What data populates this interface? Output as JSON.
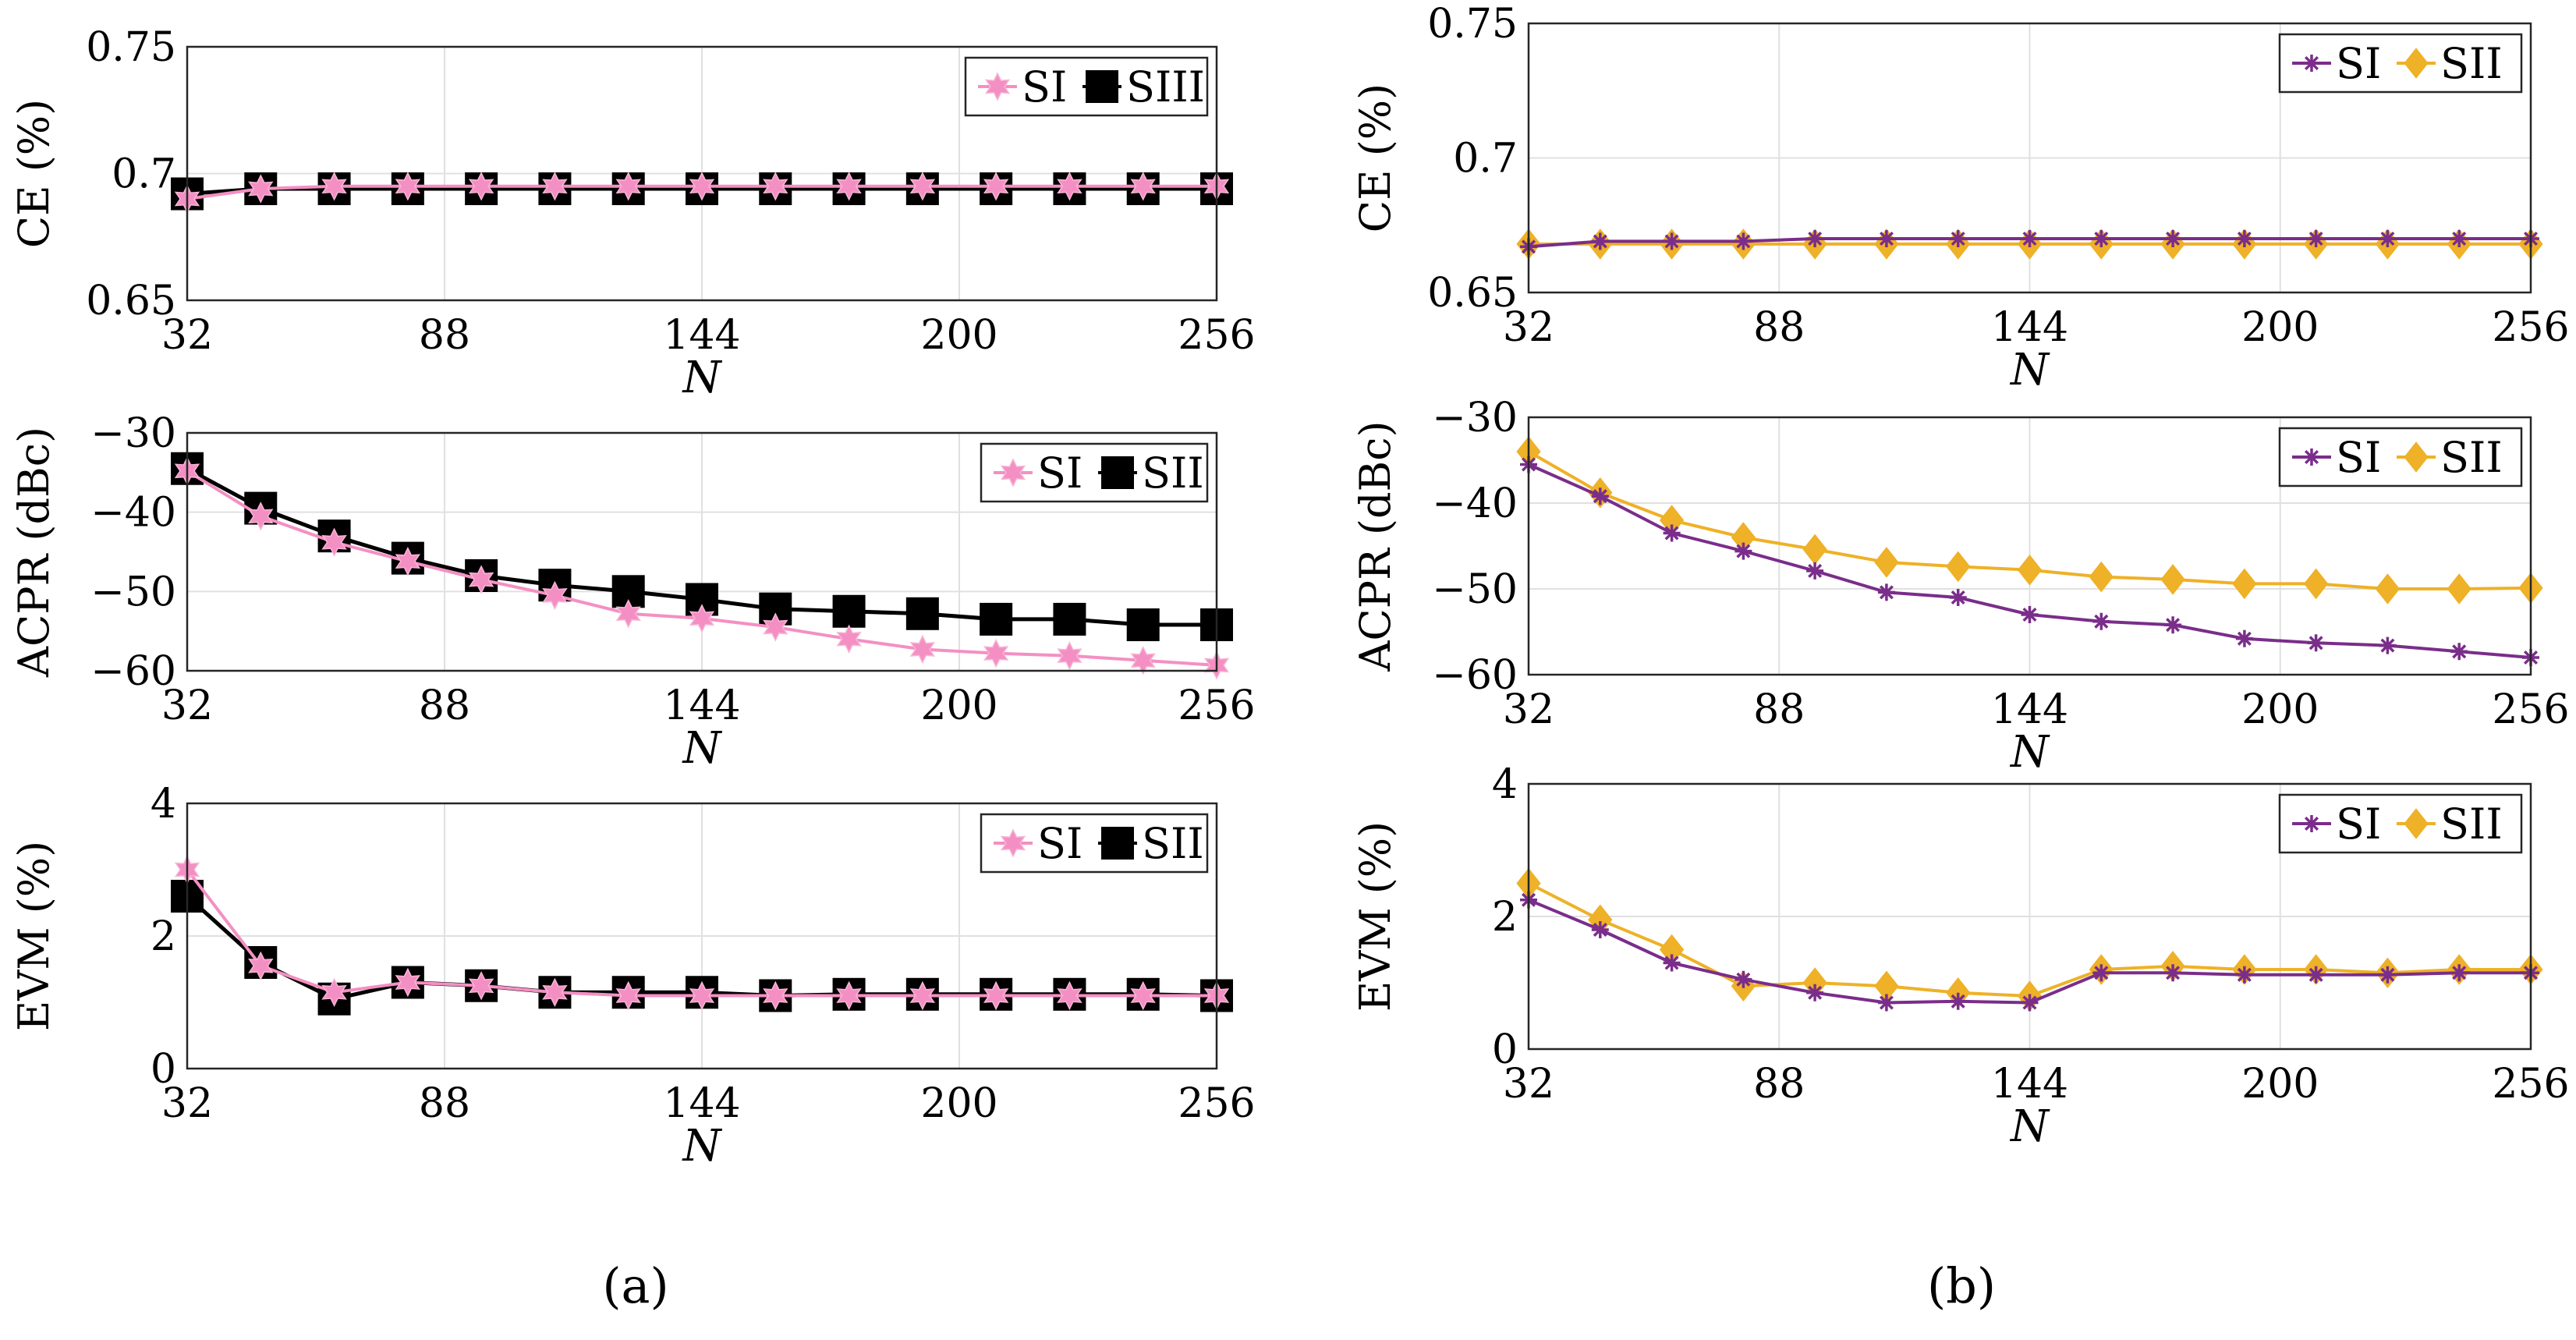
{
  "panel_labels": [
    "(a)",
    "(b)"
  ],
  "colors": {
    "pink": "#f48fc3",
    "black": "#000000",
    "purple": "#7a2d8a",
    "gold": "#eeb127",
    "grid": "#e0e0e0"
  },
  "chart_data": [
    {
      "type": "line",
      "panel": "a",
      "metric": "CE",
      "xlabel": "N",
      "ylabel": "CE (%)",
      "xlim": [
        32,
        256
      ],
      "xticks": [
        32,
        88,
        144,
        200,
        256
      ],
      "ylim": [
        0.65,
        0.75
      ],
      "yticks": [
        0.65,
        0.7,
        0.75
      ],
      "legend_position": "top-right",
      "grid": true,
      "x": [
        32,
        48,
        64,
        80,
        96,
        112,
        128,
        144,
        160,
        176,
        192,
        208,
        224,
        240,
        256
      ],
      "series": [
        {
          "name": "SIII",
          "color": "#000000",
          "marker": "square",
          "values": [
            0.692,
            0.694,
            0.694,
            0.694,
            0.694,
            0.694,
            0.694,
            0.694,
            0.694,
            0.694,
            0.694,
            0.694,
            0.694,
            0.694,
            0.694
          ]
        },
        {
          "name": "SI",
          "color": "#f48fc3",
          "marker": "hexagram",
          "values": [
            0.69,
            0.694,
            0.695,
            0.695,
            0.695,
            0.695,
            0.695,
            0.695,
            0.695,
            0.695,
            0.695,
            0.695,
            0.695,
            0.695,
            0.695
          ]
        }
      ]
    },
    {
      "type": "line",
      "panel": "a",
      "metric": "ACPR",
      "xlabel": "N",
      "ylabel": "ACPR (dBc)",
      "xlim": [
        32,
        256
      ],
      "xticks": [
        32,
        88,
        144,
        200,
        256
      ],
      "ylim": [
        -60,
        -30
      ],
      "yticks": [
        -60,
        -50,
        -40,
        -30
      ],
      "legend_position": "top-right",
      "grid": true,
      "x": [
        32,
        48,
        64,
        80,
        96,
        112,
        128,
        144,
        160,
        176,
        192,
        208,
        224,
        240,
        256
      ],
      "series": [
        {
          "name": "SII",
          "color": "#000000",
          "marker": "square",
          "values": [
            -34.5,
            -39.5,
            -43,
            -45.8,
            -48,
            -49.2,
            -50,
            -51,
            -52.2,
            -52.5,
            -52.8,
            -53.5,
            -53.5,
            -54.2,
            -54.2
          ]
        },
        {
          "name": "SI",
          "color": "#f48fc3",
          "marker": "hexagram",
          "values": [
            -34.8,
            -40.5,
            -43.8,
            -46.2,
            -48.5,
            -50.5,
            -52.8,
            -53.4,
            -54.5,
            -56,
            -57.3,
            -57.8,
            -58.1,
            -58.7,
            -59.3
          ]
        }
      ]
    },
    {
      "type": "line",
      "panel": "a",
      "metric": "EVM",
      "xlabel": "N",
      "ylabel": "EVM (%)",
      "xlim": [
        32,
        256
      ],
      "xticks": [
        32,
        88,
        144,
        200,
        256
      ],
      "ylim": [
        0,
        4
      ],
      "yticks": [
        0,
        2,
        4
      ],
      "legend_position": "top-right",
      "grid": true,
      "x": [
        32,
        48,
        64,
        80,
        96,
        112,
        128,
        144,
        160,
        176,
        192,
        208,
        224,
        240,
        256
      ],
      "series": [
        {
          "name": "SII",
          "color": "#000000",
          "marker": "square",
          "values": [
            2.6,
            1.6,
            1.05,
            1.3,
            1.25,
            1.15,
            1.15,
            1.15,
            1.1,
            1.12,
            1.12,
            1.12,
            1.12,
            1.12,
            1.1
          ]
        },
        {
          "name": "SI",
          "color": "#f48fc3",
          "marker": "hexagram",
          "values": [
            3.0,
            1.55,
            1.15,
            1.3,
            1.25,
            1.15,
            1.1,
            1.1,
            1.1,
            1.1,
            1.1,
            1.1,
            1.1,
            1.1,
            1.1
          ]
        }
      ]
    },
    {
      "type": "line",
      "panel": "b",
      "metric": "CE",
      "xlabel": "N",
      "ylabel": "CE (%)",
      "xlim": [
        32,
        256
      ],
      "xticks": [
        32,
        88,
        144,
        200,
        256
      ],
      "ylim": [
        0.65,
        0.75
      ],
      "yticks": [
        0.65,
        0.7,
        0.75
      ],
      "legend_position": "top-right",
      "grid": true,
      "x": [
        32,
        48,
        64,
        80,
        96,
        112,
        128,
        144,
        160,
        176,
        192,
        208,
        224,
        240,
        256
      ],
      "series": [
        {
          "name": "SII",
          "color": "#eeb127",
          "marker": "diamond",
          "values": [
            0.668,
            0.668,
            0.668,
            0.668,
            0.668,
            0.668,
            0.668,
            0.668,
            0.668,
            0.668,
            0.668,
            0.668,
            0.668,
            0.668,
            0.668
          ]
        },
        {
          "name": "SI",
          "color": "#7a2d8a",
          "marker": "asterisk",
          "values": [
            0.667,
            0.669,
            0.669,
            0.669,
            0.67,
            0.67,
            0.67,
            0.67,
            0.67,
            0.67,
            0.67,
            0.67,
            0.67,
            0.67,
            0.67
          ]
        }
      ]
    },
    {
      "type": "line",
      "panel": "b",
      "metric": "ACPR",
      "xlabel": "N",
      "ylabel": "ACPR (dBc)",
      "xlim": [
        32,
        256
      ],
      "xticks": [
        32,
        88,
        144,
        200,
        256
      ],
      "ylim": [
        -60,
        -30
      ],
      "yticks": [
        -60,
        -50,
        -40,
        -30
      ],
      "legend_position": "top-right",
      "grid": true,
      "x": [
        32,
        48,
        64,
        80,
        96,
        112,
        128,
        144,
        160,
        176,
        192,
        208,
        224,
        240,
        256
      ],
      "series": [
        {
          "name": "SII",
          "color": "#eeb127",
          "marker": "diamond",
          "values": [
            -34,
            -38.8,
            -42,
            -44,
            -45.4,
            -46.9,
            -47.4,
            -47.8,
            -48.6,
            -48.9,
            -49.4,
            -49.4,
            -50,
            -50,
            -49.9
          ]
        },
        {
          "name": "SI",
          "color": "#7a2d8a",
          "marker": "asterisk",
          "values": [
            -35.5,
            -39.2,
            -43.5,
            -45.6,
            -47.9,
            -50.4,
            -51,
            -53,
            -53.8,
            -54.2,
            -55.8,
            -56.3,
            -56.6,
            -57.3,
            -58
          ]
        }
      ]
    },
    {
      "type": "line",
      "panel": "b",
      "metric": "EVM",
      "xlabel": "N",
      "ylabel": "EVM (%)",
      "xlim": [
        32,
        256
      ],
      "xticks": [
        32,
        88,
        144,
        200,
        256
      ],
      "ylim": [
        0,
        4
      ],
      "yticks": [
        0,
        2,
        4
      ],
      "legend_position": "top-right",
      "grid": true,
      "x": [
        32,
        48,
        64,
        80,
        96,
        112,
        128,
        144,
        160,
        176,
        192,
        208,
        224,
        240,
        256
      ],
      "series": [
        {
          "name": "SII",
          "color": "#eeb127",
          "marker": "diamond",
          "values": [
            2.5,
            1.95,
            1.5,
            0.95,
            1.0,
            0.95,
            0.85,
            0.8,
            1.2,
            1.25,
            1.2,
            1.2,
            1.15,
            1.2,
            1.2
          ]
        },
        {
          "name": "SI",
          "color": "#7a2d8a",
          "marker": "asterisk",
          "values": [
            2.25,
            1.8,
            1.3,
            1.05,
            0.85,
            0.7,
            0.72,
            0.7,
            1.15,
            1.15,
            1.12,
            1.12,
            1.12,
            1.15,
            1.15
          ]
        }
      ]
    }
  ]
}
